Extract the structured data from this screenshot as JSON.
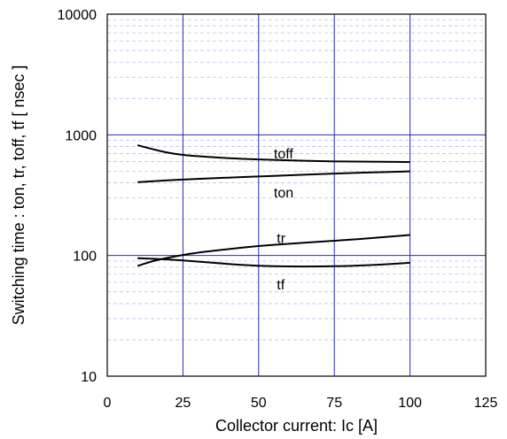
{
  "chart_data": {
    "type": "line",
    "xlabel": "Collector current: Ic [A]",
    "ylabel": "Switching time  :  ton, tr, toff, tf  [ nsec ]",
    "xlim": [
      0,
      125
    ],
    "ylim": [
      10,
      10000
    ],
    "yscale": "log",
    "grid": true,
    "x_ticks": [
      "0",
      "25",
      "50",
      "75",
      "100",
      "125"
    ],
    "y_ticks": [
      "10",
      "100",
      "1000",
      "10000"
    ],
    "series": [
      {
        "name": "toff",
        "x": [
          10,
          15,
          20,
          25,
          30,
          40,
          50,
          60,
          70,
          80,
          90,
          100
        ],
        "values": [
          820,
          760,
          710,
          680,
          665,
          640,
          625,
          615,
          605,
          600,
          598,
          595
        ]
      },
      {
        "name": "ton",
        "x": [
          10,
          20,
          30,
          40,
          50,
          60,
          70,
          80,
          90,
          100
        ],
        "values": [
          405,
          420,
          432,
          442,
          452,
          462,
          472,
          482,
          490,
          498
        ]
      },
      {
        "name": "tr",
        "x": [
          10,
          15,
          20,
          25,
          30,
          40,
          50,
          60,
          70,
          80,
          90,
          100
        ],
        "values": [
          82,
          90,
          96,
          101,
          106,
          113,
          120,
          125,
          130,
          135,
          141,
          148
        ]
      },
      {
        "name": "tf",
        "x": [
          10,
          20,
          30,
          40,
          50,
          60,
          70,
          80,
          90,
          100
        ],
        "values": [
          95,
          93,
          89,
          85,
          82,
          81,
          81,
          82,
          84,
          87
        ]
      }
    ]
  }
}
